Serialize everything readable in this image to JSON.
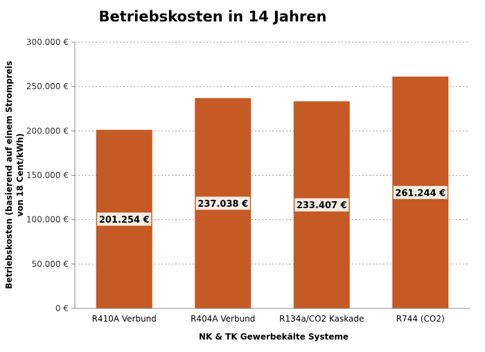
{
  "chart_data": {
    "type": "bar",
    "title": "Betriebskosten in 14 Jahren",
    "xlabel": "NK & TK Gewerbekälte Systeme",
    "ylabel_line1": "Betriebskosten (basierend auf einem Strompreis",
    "ylabel_line2": "von 18 Cent/kWh)",
    "categories": [
      "R410A Verbund",
      "R404A Verbund",
      "R134a/CO2 Kaskade",
      "R744 (CO2)"
    ],
    "values": [
      201254,
      237038,
      233407,
      261244
    ],
    "data_labels": [
      "201.254 €",
      "237.038 €",
      "233.407 €",
      "261.244 €"
    ],
    "ylim": [
      0,
      300000
    ],
    "y_ticks": [
      {
        "value": 0,
        "label": "0 €"
      },
      {
        "value": 50000,
        "label": "50.000 €"
      },
      {
        "value": 100000,
        "label": "100.000 €"
      },
      {
        "value": 150000,
        "label": "150.000 €"
      },
      {
        "value": 200000,
        "label": "200.000 €"
      },
      {
        "value": 250000,
        "label": "250.000 €"
      },
      {
        "value": 300000,
        "label": "300.000 €"
      }
    ],
    "grid": true,
    "legend": "none",
    "colors": {
      "bar": "#c65a24",
      "label_bg": "#f3ece2",
      "grid": "#9a9a9a",
      "axis": "#888888"
    }
  }
}
